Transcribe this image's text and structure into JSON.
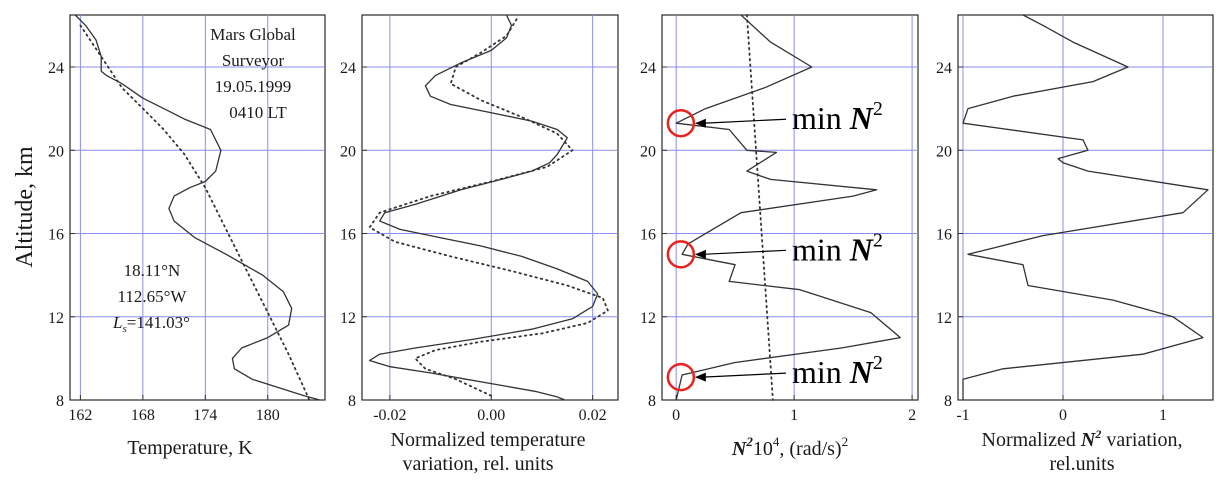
{
  "chart_data": [
    {
      "type": "line",
      "ylabel": "Altitude, km",
      "xlabel": "Temperature, K",
      "xlim": [
        161,
        185.5
      ],
      "ylim": [
        8,
        26.5
      ],
      "xticks": [
        162,
        168,
        174,
        180
      ],
      "xtick_labels": [
        "162",
        "168",
        "174",
        "180"
      ],
      "yticks": [
        8,
        12,
        16,
        20,
        24
      ],
      "ytick_labels": [
        "8",
        "12",
        "16",
        "20",
        "24"
      ],
      "grid": true,
      "annotations": {
        "mission_1": "Mars Global",
        "mission_2": "Surveyor",
        "date": "19.05.1999",
        "time": "0410 LT",
        "lat": "18.11°N",
        "lon": "112.65°W",
        "ls_sym": "L",
        "ls_sub": "s",
        "ls_value": "=141.03°"
      },
      "series": [
        {
          "style": "solid",
          "x": [
            161.5,
            162.5,
            163.5,
            164,
            164,
            164.5,
            166,
            168,
            170,
            172,
            174.5,
            175.5,
            175,
            174,
            172.5,
            171,
            170.5,
            171,
            173,
            176,
            179.5,
            181.5,
            182.3,
            182,
            180,
            177.5,
            176.6,
            176.8,
            178.5,
            181,
            183.5,
            185
          ],
          "y": [
            26.5,
            26,
            25.3,
            24.5,
            23.8,
            23.6,
            23.2,
            22.5,
            22,
            21.5,
            21,
            20,
            19,
            18.5,
            18.2,
            17.8,
            17.2,
            16.6,
            15.8,
            15,
            14,
            13.2,
            12.4,
            11.6,
            11,
            10.5,
            10,
            9.5,
            9,
            8.6,
            8.2,
            8
          ]
        },
        {
          "style": "dotted",
          "x": [
            162,
            164,
            166,
            168,
            170,
            172,
            174,
            176,
            178,
            180,
            182,
            184
          ],
          "y": [
            26,
            24.5,
            23,
            22,
            21,
            19.8,
            18.2,
            16.2,
            14.2,
            12.2,
            10.2,
            8
          ]
        }
      ]
    },
    {
      "type": "line",
      "xlabel_1": "Normalized temperature",
      "xlabel_2": "variation, rel. units",
      "xlim": [
        -0.0255,
        0.025
      ],
      "ylim": [
        8,
        26.5
      ],
      "xticks": [
        -0.02,
        0,
        0.02
      ],
      "xtick_labels": [
        "-0.02",
        "0.00",
        "0.02"
      ],
      "yticks": [
        8,
        12,
        16,
        20,
        24
      ],
      "ytick_labels": [
        "8",
        "12",
        "16",
        "20",
        "24"
      ],
      "grid": true,
      "series": [
        {
          "style": "solid",
          "x": [
            0.003,
            0.004,
            0.003,
            0.0,
            -0.006,
            -0.011,
            -0.013,
            -0.012,
            -0.008,
            0.0,
            0.008,
            0.013,
            0.015,
            0.014,
            0.013,
            0.0115,
            0.008,
            0.002,
            -0.006,
            -0.015,
            -0.021,
            -0.022,
            -0.018,
            -0.01,
            -0.002,
            0.006,
            0.013,
            0.019,
            0.021,
            0.02,
            0.016,
            0.008,
            -0.004,
            -0.015,
            -0.022,
            -0.024,
            -0.02,
            -0.012,
            -0.005,
            0.002,
            0.009,
            0.013,
            0.0145
          ],
          "y": [
            26.5,
            26,
            25.4,
            24.8,
            24.2,
            23.6,
            23.1,
            22.6,
            22.2,
            21.8,
            21.4,
            21.0,
            20.6,
            20.2,
            19.8,
            19.4,
            19.0,
            18.6,
            18.1,
            17.4,
            17.0,
            16.6,
            16.2,
            15.8,
            15.4,
            14.9,
            14.3,
            13.7,
            13.1,
            12.5,
            11.9,
            11.4,
            10.9,
            10.5,
            10.2,
            9.9,
            9.6,
            9.3,
            9.0,
            8.7,
            8.4,
            8.15,
            8.0
          ]
        },
        {
          "style": "dotted",
          "x": [
            0.005,
            0.003,
            -0.002,
            -0.007,
            -0.008,
            -0.002,
            0.006,
            0.013,
            0.016,
            0.011,
            0.0,
            -0.012,
            -0.022,
            -0.024,
            -0.019,
            -0.008,
            0.004,
            0.015,
            0.022,
            0.023,
            0.019,
            0.01,
            -0.002,
            -0.011,
            -0.015,
            -0.013,
            -0.007,
            0.0
          ],
          "y": [
            26.3,
            25.5,
            24.7,
            24.0,
            23.2,
            22.4,
            21.6,
            20.8,
            20.0,
            19.2,
            18.5,
            17.8,
            17.0,
            16.3,
            15.6,
            14.9,
            14.2,
            13.5,
            12.9,
            12.3,
            11.7,
            11.2,
            10.8,
            10.4,
            10.0,
            9.5,
            9.0,
            8.2
          ]
        }
      ]
    },
    {
      "type": "line",
      "xlabel_sym": "N",
      "xlabel_rest": "10",
      "xlabel_exp": "2",
      "xlabel_exp2": "4",
      "xlabel_unit": ", (rad/s)",
      "xlabel_unit_exp": "2",
      "xlim": [
        -0.12,
        2.05
      ],
      "ylim": [
        8,
        26.5
      ],
      "xticks": [
        0,
        1,
        2
      ],
      "xtick_labels": [
        "0",
        "1",
        "2"
      ],
      "yticks": [
        8,
        12,
        16,
        20,
        24
      ],
      "ytick_labels": [
        "8",
        "12",
        "16",
        "20",
        "24"
      ],
      "grid": true,
      "min_label_text": "min",
      "min_label_sym": "N",
      "min_label_exp": "2",
      "minima_altitudes": [
        21.3,
        15.0,
        9.1
      ],
      "series": [
        {
          "style": "solid",
          "x": [
            0.55,
            0.8,
            1.15,
            0.75,
            0.25,
            0.0,
            0.45,
            0.6,
            0.85,
            0.6,
            0.8,
            1.7,
            1.5,
            0.55,
            0.1,
            0.05,
            0.5,
            0.45,
            1.05,
            1.65,
            1.9,
            1.4,
            0.5,
            0.05,
            0.0
          ],
          "y": [
            26.5,
            25.2,
            24.0,
            23.0,
            22.0,
            21.3,
            21.0,
            20.0,
            19.9,
            19.0,
            18.6,
            18.1,
            17.8,
            17.0,
            15.5,
            15.0,
            14.5,
            13.7,
            13.3,
            12.2,
            11.0,
            10.5,
            9.8,
            9.2,
            8.0
          ]
        },
        {
          "style": "dotted",
          "x": [
            0.6,
            0.82
          ],
          "y": [
            26.5,
            8.0
          ]
        }
      ]
    },
    {
      "type": "line",
      "xlabel_1a": "Normalized ",
      "xlabel_sym": "N",
      "xlabel_exp": "2",
      "xlabel_1b": " variation,",
      "xlabel_2": "rel.units",
      "xlim": [
        -1.05,
        1.5
      ],
      "ylim": [
        8,
        26.5
      ],
      "xticks": [
        -1,
        0,
        1
      ],
      "xtick_labels": [
        "-1",
        "0",
        "1"
      ],
      "yticks": [
        8,
        12,
        16,
        20,
        24
      ],
      "ytick_labels": [
        "8",
        "12",
        "16",
        "20",
        "24"
      ],
      "grid": true,
      "series": [
        {
          "style": "solid",
          "x": [
            -0.4,
            -0.2,
            0.1,
            0.65,
            0.3,
            -0.5,
            -0.95,
            -1.0,
            0.2,
            0.25,
            -0.05,
            0.0,
            0.25,
            1.45,
            1.2,
            -0.2,
            -0.7,
            -0.95,
            -0.4,
            -0.35,
            0.5,
            1.1,
            1.4,
            0.8,
            -0.6,
            -1.0,
            -1.0
          ],
          "y": [
            26.5,
            26.0,
            25.2,
            24.0,
            23.3,
            22.6,
            22.0,
            21.3,
            20.5,
            20.0,
            19.6,
            19.4,
            19.0,
            18.1,
            17.0,
            15.9,
            15.3,
            15.0,
            14.5,
            13.5,
            12.8,
            12.0,
            11.0,
            10.2,
            9.5,
            9.0,
            8.0
          ]
        }
      ]
    }
  ]
}
